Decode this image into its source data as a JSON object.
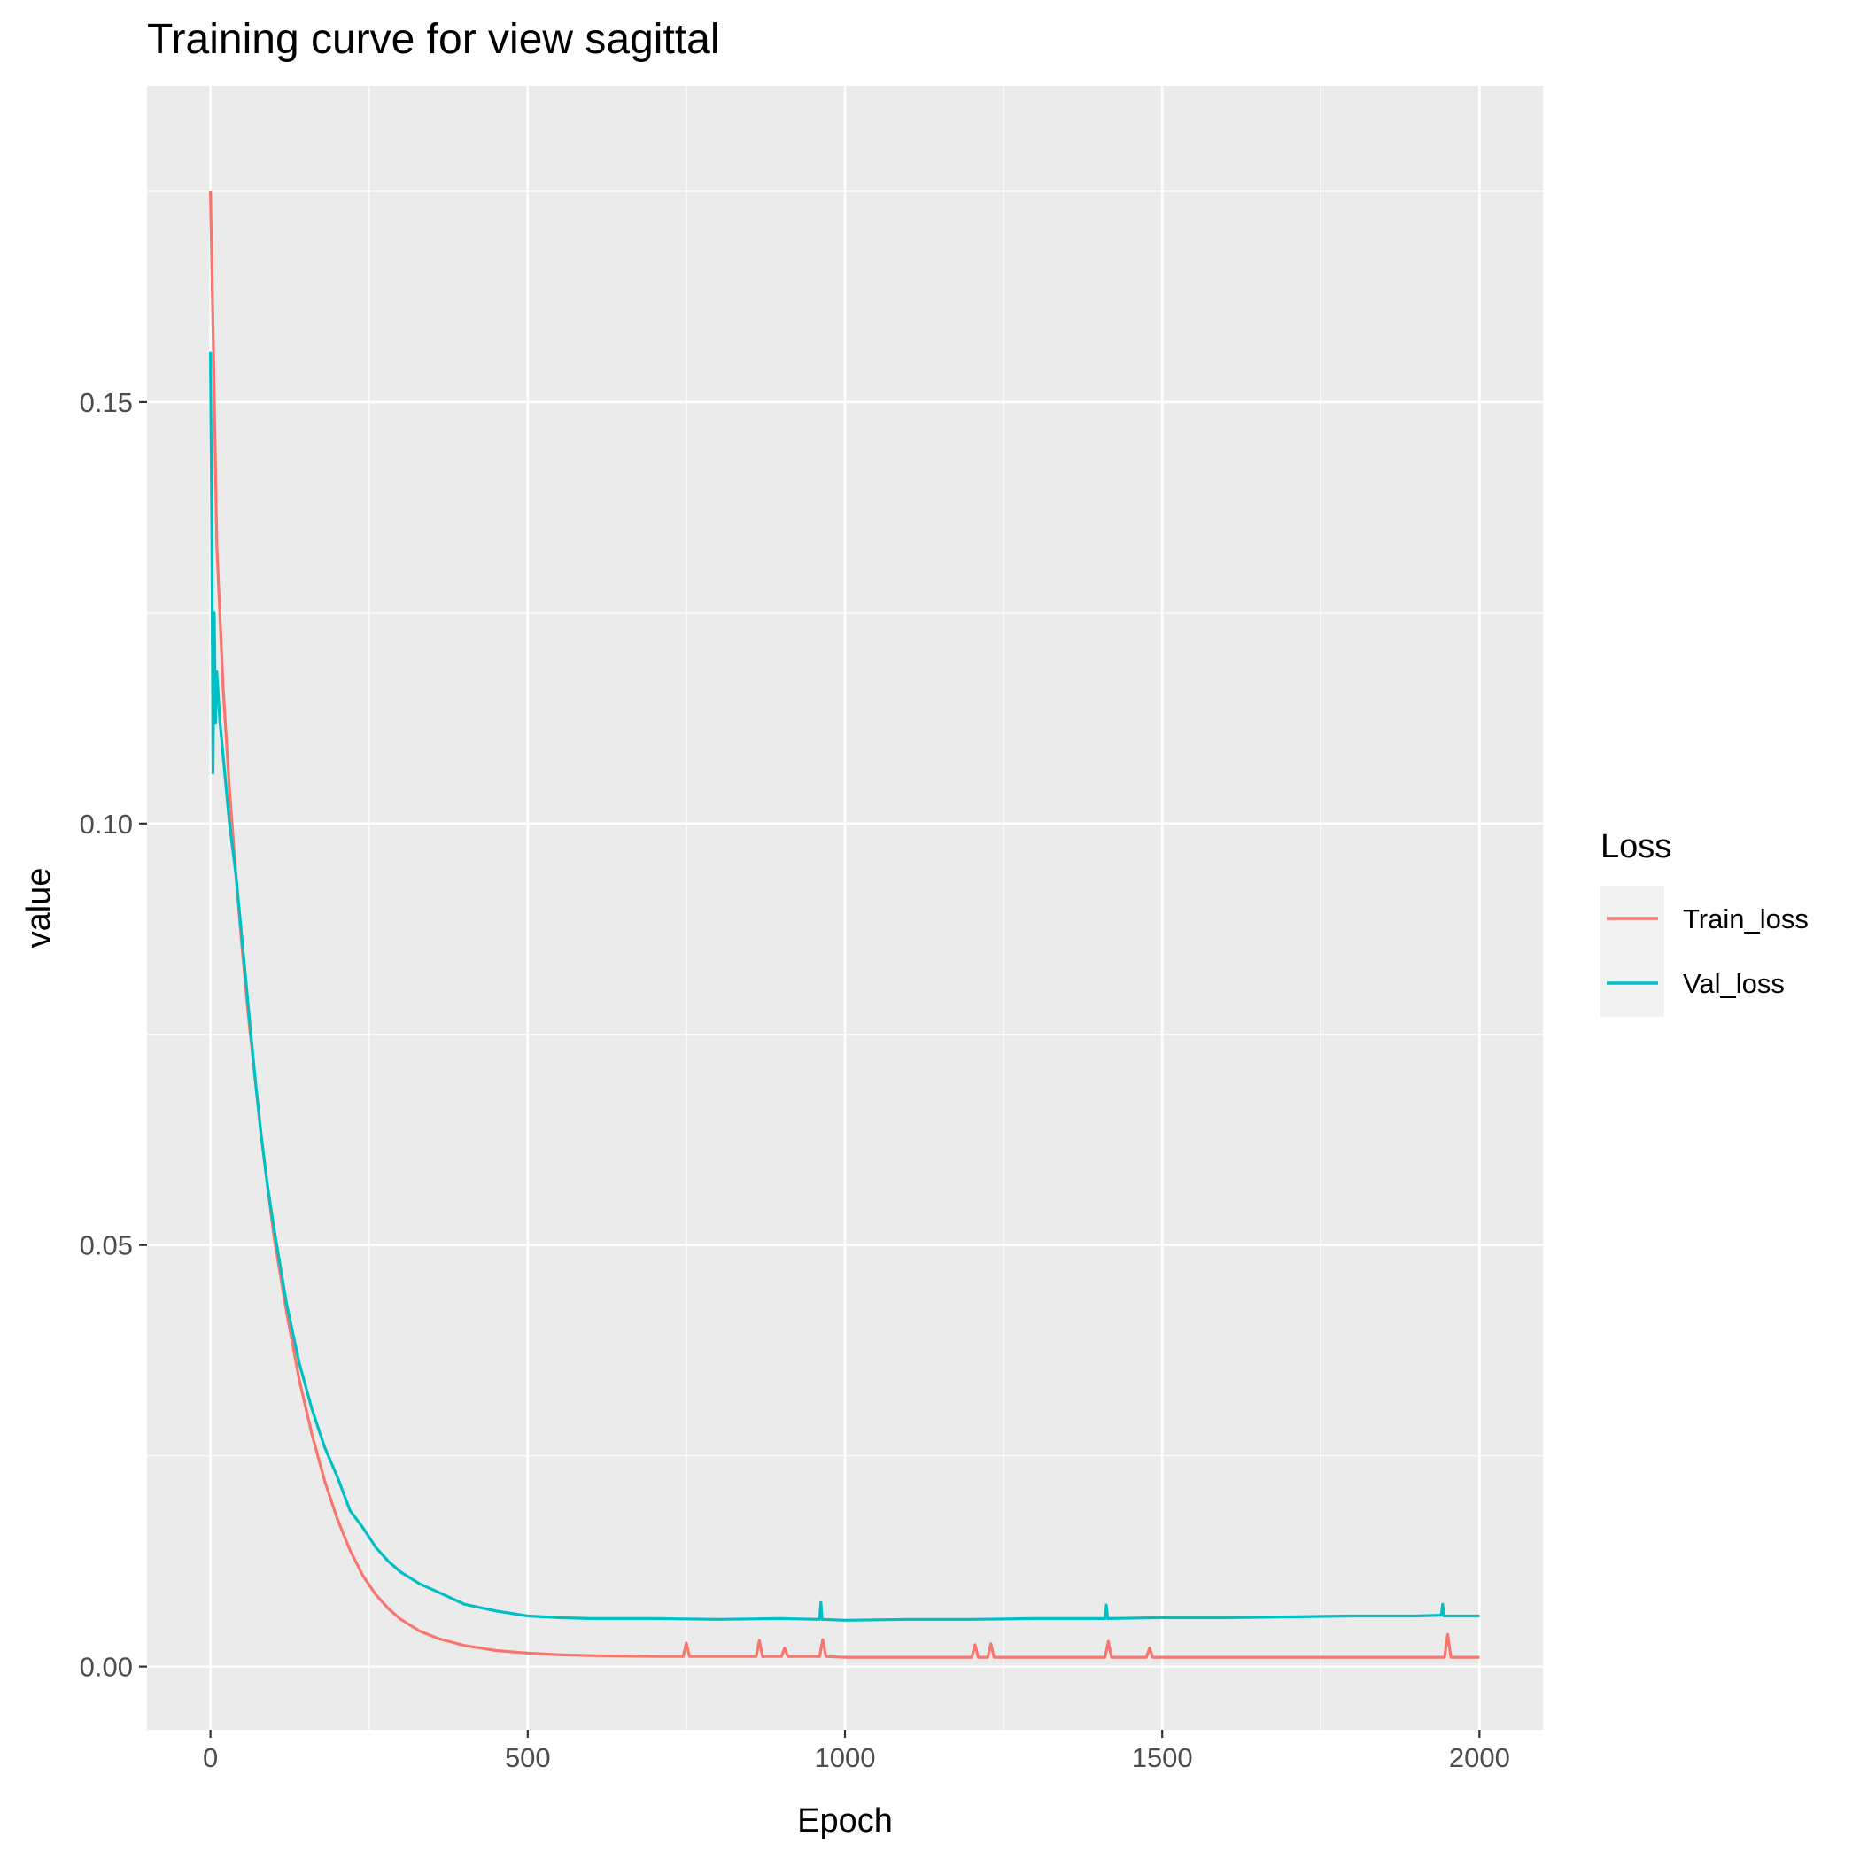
{
  "chart_data": {
    "type": "line",
    "title": "Training curve for view sagittal",
    "xlabel": "Epoch",
    "ylabel": "value",
    "xlim": [
      -100,
      2100
    ],
    "ylim": [
      -0.0075,
      0.1875
    ],
    "x_ticks": [
      0,
      500,
      1000,
      1500,
      2000
    ],
    "x_tick_labels": [
      "0",
      "500",
      "1000",
      "1500",
      "2000"
    ],
    "y_ticks": [
      0.0,
      0.05,
      0.1,
      0.15
    ],
    "y_tick_labels": [
      "0.00",
      "0.05",
      "0.10",
      "0.15"
    ],
    "grid": true,
    "legend": {
      "title": "Loss",
      "position": "right"
    },
    "series": [
      {
        "name": "Train_loss",
        "color": "#F8766D",
        "x": [
          0,
          5,
          10,
          20,
          30,
          40,
          50,
          60,
          70,
          80,
          90,
          100,
          120,
          140,
          160,
          180,
          200,
          220,
          240,
          260,
          280,
          300,
          330,
          360,
          400,
          450,
          500,
          550,
          600,
          700,
          745,
          750,
          755,
          800,
          860,
          865,
          870,
          900,
          905,
          910,
          960,
          965,
          970,
          1000,
          1200,
          1205,
          1210,
          1225,
          1230,
          1235,
          1410,
          1415,
          1420,
          1475,
          1480,
          1485,
          1600,
          1700,
          1800,
          1900,
          1945,
          1950,
          1955,
          2000
        ],
        "y": [
          0.175,
          0.155,
          0.133,
          0.116,
          0.104,
          0.094,
          0.085,
          0.077,
          0.07,
          0.063,
          0.057,
          0.051,
          0.042,
          0.034,
          0.0275,
          0.022,
          0.0175,
          0.0138,
          0.0108,
          0.0086,
          0.0069,
          0.0056,
          0.0042,
          0.0033,
          0.0025,
          0.0019,
          0.0016,
          0.0014,
          0.0013,
          0.0012,
          0.0012,
          0.0028,
          0.0012,
          0.0012,
          0.0012,
          0.0031,
          0.0012,
          0.0012,
          0.0022,
          0.0012,
          0.0012,
          0.0032,
          0.0012,
          0.0011,
          0.0011,
          0.0026,
          0.0011,
          0.0011,
          0.0027,
          0.0011,
          0.0011,
          0.003,
          0.0011,
          0.0011,
          0.0022,
          0.0011,
          0.0011,
          0.0011,
          0.0011,
          0.0011,
          0.0011,
          0.0038,
          0.0011,
          0.0011
        ]
      },
      {
        "name": "Val_loss",
        "color": "#00BFC4",
        "x": [
          0,
          2,
          4,
          6,
          8,
          10,
          15,
          20,
          30,
          40,
          50,
          60,
          70,
          80,
          90,
          100,
          120,
          140,
          160,
          180,
          200,
          220,
          240,
          260,
          280,
          300,
          330,
          360,
          400,
          450,
          500,
          550,
          600,
          700,
          800,
          900,
          960,
          962,
          964,
          1000,
          1100,
          1200,
          1300,
          1400,
          1410,
          1412,
          1414,
          1500,
          1600,
          1700,
          1800,
          1900,
          1940,
          1942,
          1944,
          2000
        ],
        "y": [
          0.156,
          0.135,
          0.106,
          0.125,
          0.112,
          0.118,
          0.112,
          0.108,
          0.1,
          0.094,
          0.086,
          0.078,
          0.07,
          0.063,
          0.057,
          0.052,
          0.043,
          0.036,
          0.0305,
          0.026,
          0.0225,
          0.0185,
          0.0165,
          0.0142,
          0.0125,
          0.0112,
          0.0098,
          0.0088,
          0.0074,
          0.0066,
          0.006,
          0.0058,
          0.0057,
          0.0057,
          0.0056,
          0.0057,
          0.0056,
          0.0076,
          0.0056,
          0.0055,
          0.0056,
          0.0056,
          0.0057,
          0.0057,
          0.0057,
          0.0073,
          0.0057,
          0.0058,
          0.0058,
          0.0059,
          0.006,
          0.006,
          0.0061,
          0.0074,
          0.006,
          0.006
        ]
      }
    ]
  }
}
